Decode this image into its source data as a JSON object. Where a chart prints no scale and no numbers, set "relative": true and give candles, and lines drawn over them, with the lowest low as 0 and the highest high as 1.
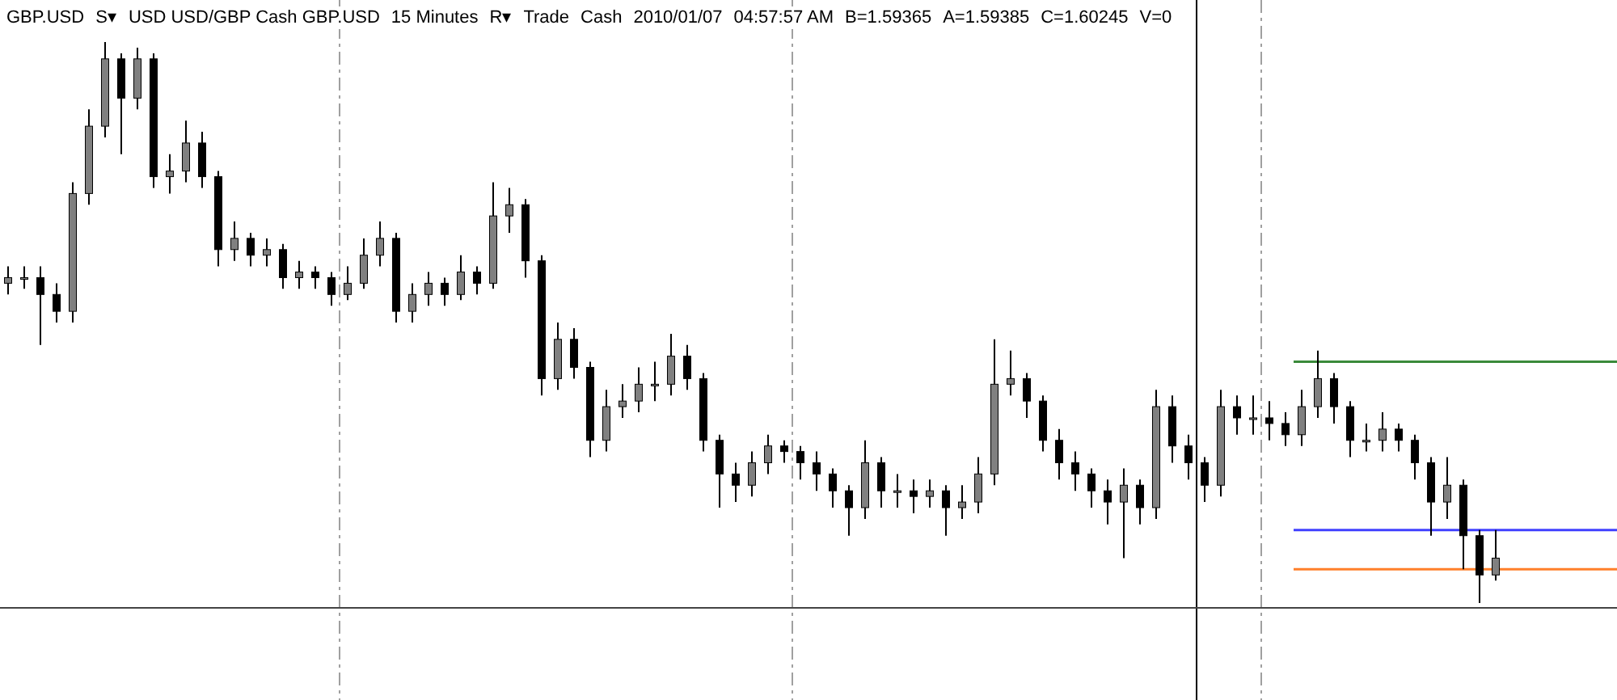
{
  "chart_data": {
    "type": "candlestick",
    "relative": true,
    "title": "GBP.USD",
    "annotations": [
      "S▾",
      "USD USD/GBP Cash GBP.USD",
      "15 Minutes",
      "R▾",
      "Trade",
      "Cash",
      "2010/01/07",
      "04:57:57 AM",
      "B=1.59365",
      "A=1.59385",
      "C=1.60245",
      "V=0"
    ],
    "categories": [
      null,
      null,
      null,
      null,
      null,
      null,
      null,
      null,
      null,
      null,
      null,
      null,
      null,
      null,
      null,
      null,
      null,
      null,
      null,
      null,
      null,
      null,
      null,
      null,
      null,
      null,
      null,
      null,
      null,
      null,
      null,
      null,
      null,
      null,
      null,
      null,
      null,
      null,
      null,
      null,
      null,
      null,
      null,
      null,
      null,
      null,
      null,
      null,
      null,
      null,
      null,
      null,
      null,
      null,
      null,
      null,
      null,
      null,
      null,
      null,
      null,
      null,
      null,
      null,
      null,
      null,
      null,
      null,
      null,
      null,
      null,
      null,
      null,
      null,
      null,
      null,
      null,
      null,
      null,
      null,
      null,
      null,
      null,
      null,
      null,
      null,
      null,
      null,
      null,
      null,
      null,
      null,
      null
    ],
    "ohlc": [
      [
        0.57,
        0.6,
        0.55,
        0.58
      ],
      [
        0.58,
        0.6,
        0.56,
        0.58
      ],
      [
        0.58,
        0.6,
        0.46,
        0.55
      ],
      [
        0.55,
        0.57,
        0.5,
        0.52
      ],
      [
        0.52,
        0.75,
        0.5,
        0.73
      ],
      [
        0.73,
        0.88,
        0.71,
        0.85
      ],
      [
        0.85,
        1,
        0.83,
        0.97
      ],
      [
        0.97,
        0.98,
        0.8,
        0.9
      ],
      [
        0.9,
        0.99,
        0.88,
        0.97
      ],
      [
        0.97,
        0.98,
        0.74,
        0.76
      ],
      [
        0.76,
        0.8,
        0.73,
        0.77
      ],
      [
        0.77,
        0.86,
        0.75,
        0.82
      ],
      [
        0.82,
        0.84,
        0.74,
        0.76
      ],
      [
        0.76,
        0.77,
        0.6,
        0.63
      ],
      [
        0.63,
        0.68,
        0.61,
        0.65
      ],
      [
        0.65,
        0.66,
        0.6,
        0.62
      ],
      [
        0.62,
        0.65,
        0.6,
        0.63
      ],
      [
        0.63,
        0.64,
        0.56,
        0.58
      ],
      [
        0.58,
        0.61,
        0.56,
        0.59
      ],
      [
        0.59,
        0.6,
        0.56,
        0.58
      ],
      [
        0.58,
        0.59,
        0.53,
        0.55
      ],
      [
        0.55,
        0.6,
        0.54,
        0.57
      ],
      [
        0.57,
        0.65,
        0.56,
        0.62
      ],
      [
        0.62,
        0.68,
        0.6,
        0.65
      ],
      [
        0.65,
        0.66,
        0.5,
        0.52
      ],
      [
        0.52,
        0.57,
        0.5,
        0.55
      ],
      [
        0.55,
        0.59,
        0.53,
        0.57
      ],
      [
        0.57,
        0.58,
        0.53,
        0.55
      ],
      [
        0.55,
        0.62,
        0.54,
        0.59
      ],
      [
        0.59,
        0.6,
        0.55,
        0.57
      ],
      [
        0.57,
        0.75,
        0.56,
        0.69
      ],
      [
        0.69,
        0.74,
        0.66,
        0.71
      ],
      [
        0.71,
        0.72,
        0.58,
        0.61
      ],
      [
        0.61,
        0.62,
        0.37,
        0.4
      ],
      [
        0.4,
        0.5,
        0.38,
        0.47
      ],
      [
        0.47,
        0.49,
        0.4,
        0.42
      ],
      [
        0.42,
        0.43,
        0.26,
        0.29
      ],
      [
        0.29,
        0.38,
        0.27,
        0.35
      ],
      [
        0.35,
        0.39,
        0.33,
        0.36
      ],
      [
        0.36,
        0.42,
        0.34,
        0.39
      ],
      [
        0.39,
        0.43,
        0.36,
        0.39
      ],
      [
        0.39,
        0.48,
        0.37,
        0.44
      ],
      [
        0.44,
        0.46,
        0.38,
        0.4
      ],
      [
        0.4,
        0.41,
        0.27,
        0.29
      ],
      [
        0.29,
        0.3,
        0.17,
        0.23
      ],
      [
        0.23,
        0.25,
        0.18,
        0.21
      ],
      [
        0.21,
        0.27,
        0.19,
        0.25
      ],
      [
        0.25,
        0.3,
        0.23,
        0.28
      ],
      [
        0.28,
        0.29,
        0.25,
        0.27
      ],
      [
        0.27,
        0.28,
        0.22,
        0.25
      ],
      [
        0.25,
        0.27,
        0.2,
        0.23
      ],
      [
        0.23,
        0.24,
        0.17,
        0.2
      ],
      [
        0.2,
        0.21,
        0.12,
        0.17
      ],
      [
        0.17,
        0.29,
        0.15,
        0.25
      ],
      [
        0.25,
        0.26,
        0.17,
        0.2
      ],
      [
        0.2,
        0.23,
        0.17,
        0.2
      ],
      [
        0.2,
        0.22,
        0.16,
        0.19
      ],
      [
        0.19,
        0.22,
        0.17,
        0.2
      ],
      [
        0.2,
        0.21,
        0.12,
        0.17
      ],
      [
        0.17,
        0.21,
        0.15,
        0.18
      ],
      [
        0.18,
        0.26,
        0.16,
        0.23
      ],
      [
        0.23,
        0.47,
        0.21,
        0.39
      ],
      [
        0.39,
        0.45,
        0.37,
        0.4
      ],
      [
        0.4,
        0.41,
        0.33,
        0.36
      ],
      [
        0.36,
        0.37,
        0.27,
        0.29
      ],
      [
        0.29,
        0.31,
        0.22,
        0.25
      ],
      [
        0.25,
        0.27,
        0.2,
        0.23
      ],
      [
        0.23,
        0.24,
        0.17,
        0.2
      ],
      [
        0.2,
        0.22,
        0.14,
        0.18
      ],
      [
        0.18,
        0.24,
        0.08,
        0.21
      ],
      [
        0.21,
        0.22,
        0.14,
        0.17
      ],
      [
        0.17,
        0.38,
        0.15,
        0.35
      ],
      [
        0.35,
        0.37,
        0.25,
        0.28
      ],
      [
        0.28,
        0.3,
        0.22,
        0.25
      ],
      [
        0.25,
        0.26,
        0.18,
        0.21
      ],
      [
        0.21,
        0.38,
        0.19,
        0.35
      ],
      [
        0.35,
        0.37,
        0.3,
        0.33
      ],
      [
        0.33,
        0.37,
        0.3,
        0.33
      ],
      [
        0.33,
        0.36,
        0.29,
        0.32
      ],
      [
        0.32,
        0.34,
        0.28,
        0.3
      ],
      [
        0.3,
        0.38,
        0.28,
        0.35
      ],
      [
        0.35,
        0.45,
        0.33,
        0.4
      ],
      [
        0.4,
        0.41,
        0.32,
        0.35
      ],
      [
        0.35,
        0.36,
        0.26,
        0.29
      ],
      [
        0.29,
        0.32,
        0.27,
        0.29
      ],
      [
        0.29,
        0.34,
        0.27,
        0.31
      ],
      [
        0.31,
        0.32,
        0.27,
        0.29
      ],
      [
        0.29,
        0.3,
        0.22,
        0.25
      ],
      [
        0.25,
        0.26,
        0.12,
        0.18
      ],
      [
        0.18,
        0.26,
        0.15,
        0.21
      ],
      [
        0.21,
        0.22,
        0.06,
        0.12
      ],
      [
        0.12,
        0.13,
        0,
        0.05
      ],
      [
        0.05,
        0.13,
        0.04,
        0.08
      ]
    ],
    "grid": "x",
    "ref_lines": [
      {
        "axis": "y",
        "value": 0.43,
        "color": "#3a8a3a",
        "line_style": "solid"
      },
      {
        "axis": "y",
        "value": 0.13,
        "color": "#4040ff",
        "line_style": "solid"
      },
      {
        "axis": "y",
        "value": 0.06,
        "color": "#ff7f2a",
        "line_style": "solid"
      }
    ]
  }
}
